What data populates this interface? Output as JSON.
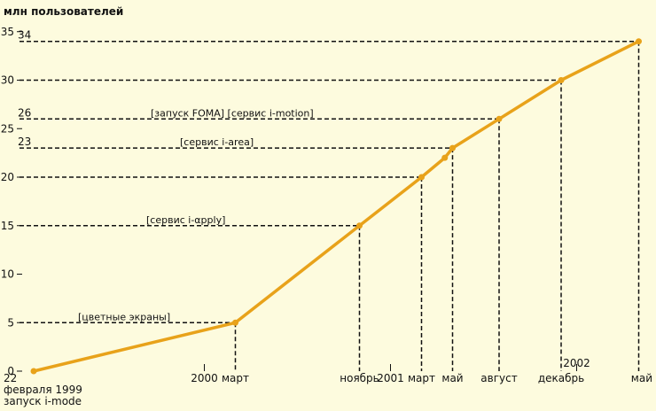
{
  "chart_data": {
    "type": "line",
    "ylabel": "млн пользователей",
    "ylim": [
      0,
      35
    ],
    "yticks": [
      0,
      5,
      10,
      15,
      20,
      25,
      30,
      35
    ],
    "line_color": "#e8a21a",
    "background": "#fdfbde",
    "points": [
      {
        "x": 0,
        "y": 0,
        "label": "22",
        "sublabels": [
          "февраля 1999",
          "запуск i-mode"
        ]
      },
      {
        "x": 13,
        "y": 5,
        "label": "март"
      },
      {
        "x": 21,
        "y": 15,
        "label": "ноябрь"
      },
      {
        "x": 25,
        "y": 20,
        "label": "март"
      },
      {
        "x": 26.5,
        "y": 22
      },
      {
        "x": 27,
        "y": 23,
        "label": "май"
      },
      {
        "x": 30,
        "y": 26,
        "label": "август"
      },
      {
        "x": 34,
        "y": 30,
        "label": "декабрь"
      },
      {
        "x": 39,
        "y": 34,
        "label": "май"
      }
    ],
    "year_markers": [
      {
        "x": 11,
        "label": "2000"
      },
      {
        "x": 23,
        "label": "2001"
      },
      {
        "x": 35,
        "label": "2002"
      }
    ],
    "value_labels": [
      {
        "y": 34,
        "label": "34"
      },
      {
        "y": 26,
        "label": "26"
      },
      {
        "y": 23,
        "label": "23"
      }
    ],
    "annotations": [
      {
        "y": 5,
        "text": "[цветные экраны]"
      },
      {
        "y": 15,
        "text": "[сервис i-αpply]"
      },
      {
        "y": 23,
        "text": "[сервис i-area]"
      },
      {
        "y": 26,
        "text": "[запуск FOMA]  [сервис i-motion]"
      }
    ]
  }
}
